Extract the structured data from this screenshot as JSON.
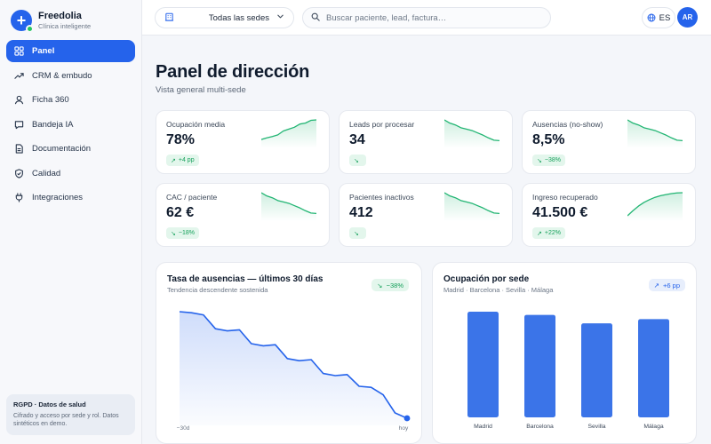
{
  "brand": {
    "name": "Freedolia",
    "subtitle": "Clínica inteligente",
    "logo_glyph": "+"
  },
  "nav": [
    {
      "label": "Panel",
      "icon": "grid-icon",
      "active": true
    },
    {
      "label": "CRM & embudo",
      "icon": "trend-icon",
      "active": false
    },
    {
      "label": "Ficha 360",
      "icon": "user-icon",
      "active": false
    },
    {
      "label": "Bandeja IA",
      "icon": "chat-icon",
      "active": false
    },
    {
      "label": "Documentación",
      "icon": "document-icon",
      "active": false
    },
    {
      "label": "Calidad",
      "icon": "shield-icon",
      "active": false
    },
    {
      "label": "Integraciones",
      "icon": "plug-icon",
      "active": false
    }
  ],
  "gdpr": {
    "title": "RGPD · Datos de salud",
    "text": "Cifrado y acceso por sede y rol. Datos sintéticos en demo."
  },
  "topbar": {
    "sede_selector": "Todas las sedes",
    "search_placeholder": "Buscar paciente, lead, factura…",
    "search_value": "",
    "language": "ES",
    "avatar_initials": "AR"
  },
  "page": {
    "title": "Panel de dirección",
    "subtitle": "Vista general multi-sede"
  },
  "kpis": [
    {
      "label": "Ocupación media",
      "value": "78%",
      "badge": "+4 pp",
      "trend": "up"
    },
    {
      "label": "Leads por procesar",
      "value": "34",
      "badge": "",
      "trend": "down"
    },
    {
      "label": "Ausencias (no-show)",
      "value": "8,5%",
      "badge": "−38%",
      "trend": "down"
    },
    {
      "label": "CAC / paciente",
      "value": "62 €",
      "badge": "−18%",
      "trend": "down"
    },
    {
      "label": "Pacientes inactivos",
      "value": "412",
      "badge": "",
      "trend": "down"
    },
    {
      "label": "Ingreso recuperado",
      "value": "41.500 €",
      "badge": "+22%",
      "trend": "up"
    }
  ],
  "colors": {
    "accent": "#2563eb",
    "positive": "#16a05b",
    "spark": "#22b573"
  },
  "chart_data": [
    {
      "type": "area",
      "title": "Tasa de ausencias — últimos 30 días",
      "subtitle": "Tendencia descendente sostenida",
      "badge": "−38%",
      "x_tick_labels": [
        "−30d",
        "hoy"
      ],
      "values": [
        100,
        99,
        97,
        84,
        82,
        83,
        70,
        68,
        69,
        56,
        54,
        55,
        42,
        40,
        41,
        30,
        29,
        22,
        5,
        0
      ],
      "ylim": [
        0,
        100
      ],
      "grid": false
    },
    {
      "type": "bar",
      "title": "Ocupación por sede",
      "subtitle": "Madrid · Barcelona · Sevilla · Málaga",
      "badge": "+6 pp",
      "categories": [
        "Madrid",
        "Barcelona",
        "Sevilla",
        "Málaga"
      ],
      "values": [
        100,
        97,
        89,
        93
      ],
      "ylim": [
        0,
        100
      ],
      "grid": false
    }
  ]
}
